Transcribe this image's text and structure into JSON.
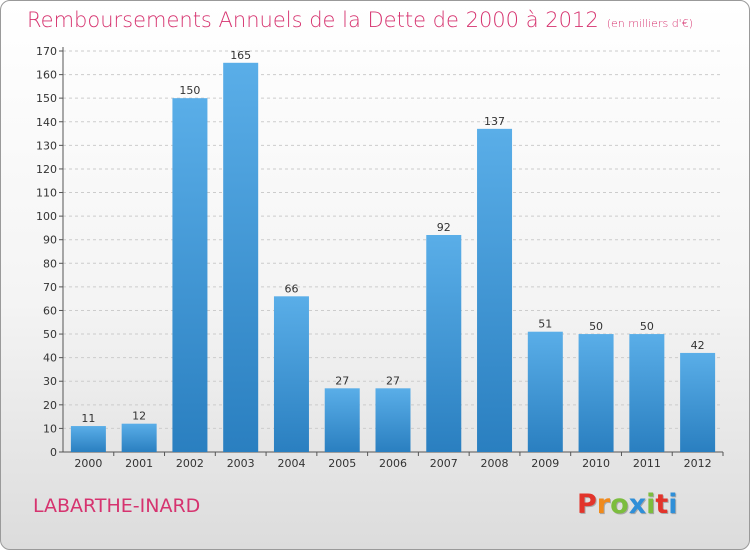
{
  "title": "Remboursements Annuels de la Dette de 2000 à 2012",
  "subtitle": "(en milliers d'€)",
  "commune": "LABARTHE-INARD",
  "logo": {
    "letters": [
      "P",
      "r",
      "o",
      "x",
      "i",
      "t",
      "i"
    ],
    "colors": [
      "#e2342b",
      "#f08a1c",
      "#7cbd3e",
      "#2f8fd8",
      "#7cbd3e",
      "#e2342b",
      "#2f8fd8"
    ]
  },
  "colors": {
    "bar_top": "#5aaee8",
    "bar_bottom": "#2a7fc0",
    "title": "#d6336f",
    "grid": "#cccccc"
  },
  "chart_data": {
    "type": "bar",
    "title": "Remboursements Annuels de la Dette de 2000 à 2012",
    "categories": [
      "2000",
      "2001",
      "2002",
      "2003",
      "2004",
      "2005",
      "2006",
      "2007",
      "2008",
      "2009",
      "2010",
      "2011",
      "2012"
    ],
    "values": [
      11,
      12,
      150,
      165,
      66,
      27,
      27,
      92,
      137,
      51,
      50,
      50,
      42
    ],
    "ylim": [
      0,
      170
    ],
    "yticks": [
      0,
      10,
      20,
      30,
      40,
      50,
      60,
      70,
      80,
      90,
      100,
      110,
      120,
      130,
      140,
      150,
      160,
      170
    ],
    "xlabel": "",
    "ylabel": "",
    "grid": true
  }
}
